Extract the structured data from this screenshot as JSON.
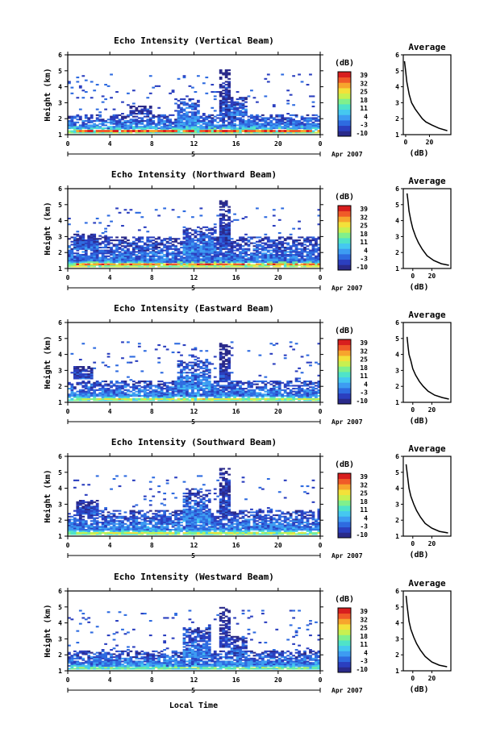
{
  "colors": {
    "scale": [
      "#2a2a8a",
      "#2b3fbf",
      "#2e6be0",
      "#3d9cf2",
      "#45c8f0",
      "#4fe3c9",
      "#80f08c",
      "#c8f050",
      "#f3e13a",
      "#f7a52d",
      "#f05a28",
      "#d81e1e"
    ],
    "line": "#000000",
    "background": "#ffffff"
  },
  "common": {
    "height_label": "Height (km)",
    "db_unit": "(dB)",
    "average_title": "Average",
    "db_label": "(dB)",
    "date_label": "Apr 2007",
    "day_label": "5",
    "xlabel": "Local Time",
    "colorbar_ticks": [
      "39",
      "32",
      "25",
      "18",
      "11",
      "4",
      "-3",
      "-10"
    ]
  },
  "chart_data": [
    {
      "type": "heatmap",
      "title": "Echo Intensity (Vertical Beam)",
      "ylabel": "Height (km)",
      "x_ticks": [
        "0",
        "4",
        "8",
        "12",
        "16",
        "20",
        "0"
      ],
      "y_ticks": [
        "1",
        "2",
        "3",
        "4",
        "5",
        "6"
      ],
      "xlim": [
        0,
        24
      ],
      "ylim": [
        1,
        6
      ],
      "colorbar": {
        "label": "(dB)",
        "ticks": [
          "39",
          "32",
          "25",
          "18",
          "11",
          "4",
          "-3",
          "-10"
        ],
        "range": [
          -10,
          39
        ]
      },
      "average_profile": {
        "title": "Average",
        "xlabel": "(dB)",
        "x_ticks": [
          "0",
          "20"
        ],
        "y_ticks": [
          "1",
          "2",
          "3",
          "4",
          "5",
          "6"
        ],
        "xlim": [
          -2,
          38
        ],
        "points": [
          [
            -1,
            5.6
          ],
          [
            0,
            5.0
          ],
          [
            1,
            4.3
          ],
          [
            3,
            3.5
          ],
          [
            5,
            3.0
          ],
          [
            8,
            2.6
          ],
          [
            11,
            2.3
          ],
          [
            14,
            2.0
          ],
          [
            17,
            1.8
          ],
          [
            22,
            1.6
          ],
          [
            28,
            1.4
          ],
          [
            35,
            1.25
          ]
        ]
      },
      "blobs": [
        {
          "x": [
            0,
            24
          ],
          "y": [
            1.1,
            1.5
          ],
          "v": 16
        },
        {
          "x": [
            0,
            24
          ],
          "y": [
            1.4,
            2.3
          ],
          "v": 3
        },
        {
          "x": [
            10.5,
            12.5
          ],
          "y": [
            1.6,
            3.3
          ],
          "v": 4
        },
        {
          "x": [
            14.5,
            15.5
          ],
          "y": [
            2.2,
            5.1
          ],
          "v": -3
        },
        {
          "x": [
            15.6,
            17
          ],
          "y": [
            2.2,
            3.4
          ],
          "v": 2
        },
        {
          "x": [
            6,
            8
          ],
          "y": [
            2.3,
            2.8
          ],
          "v": -4
        }
      ],
      "strong_band": {
        "y": [
          1.15,
          1.3
        ],
        "v": 38
      }
    },
    {
      "type": "heatmap",
      "title": "Echo Intensity (Northward Beam)",
      "ylabel": "Height (km)",
      "x_ticks": [
        "0",
        "4",
        "8",
        "12",
        "16",
        "20",
        "0"
      ],
      "y_ticks": [
        "1",
        "2",
        "3",
        "4",
        "5",
        "6"
      ],
      "xlim": [
        0,
        24
      ],
      "ylim": [
        1,
        6
      ],
      "colorbar": {
        "label": "(dB)",
        "ticks": [
          "39",
          "32",
          "25",
          "18",
          "11",
          "4",
          "-3",
          "-10"
        ],
        "range": [
          -10,
          39
        ]
      },
      "average_profile": {
        "title": "Average",
        "xlabel": "(dB)",
        "x_ticks": [
          "0",
          "20"
        ],
        "y_ticks": [
          "1",
          "2",
          "3",
          "4",
          "5",
          "6"
        ],
        "xlim": [
          -10,
          40
        ],
        "points": [
          [
            -6,
            5.7
          ],
          [
            -5,
            5.2
          ],
          [
            -4,
            4.6
          ],
          [
            -2,
            4.0
          ],
          [
            0,
            3.5
          ],
          [
            3,
            3.0
          ],
          [
            6,
            2.6
          ],
          [
            10,
            2.2
          ],
          [
            15,
            1.8
          ],
          [
            22,
            1.5
          ],
          [
            30,
            1.3
          ],
          [
            38,
            1.2
          ]
        ]
      },
      "blobs": [
        {
          "x": [
            0,
            24
          ],
          "y": [
            1.1,
            1.45
          ],
          "v": 20
        },
        {
          "x": [
            0,
            24
          ],
          "y": [
            1.4,
            3.0
          ],
          "v": 2
        },
        {
          "x": [
            11,
            14
          ],
          "y": [
            2.0,
            3.6
          ],
          "v": 3
        },
        {
          "x": [
            14.3,
            15.5
          ],
          "y": [
            2.5,
            5.3
          ],
          "v": -3
        },
        {
          "x": [
            0.5,
            3
          ],
          "y": [
            2.2,
            3.2
          ],
          "v": 0
        }
      ],
      "strong_band": {
        "y": [
          1.2,
          1.32
        ],
        "v": 36
      }
    },
    {
      "type": "heatmap",
      "title": "Echo Intensity (Eastward Beam)",
      "ylabel": "Height (km)",
      "x_ticks": [
        "0",
        "4",
        "8",
        "12",
        "16",
        "20",
        "0"
      ],
      "y_ticks": [
        "1",
        "2",
        "3",
        "4",
        "5",
        "6"
      ],
      "xlim": [
        0,
        24
      ],
      "ylim": [
        1,
        6
      ],
      "colorbar": {
        "label": "(dB)",
        "ticks": [
          "39",
          "32",
          "25",
          "18",
          "11",
          "4",
          "-3",
          "-10"
        ],
        "range": [
          -10,
          39
        ]
      },
      "average_profile": {
        "title": "Average",
        "xlabel": "(dB)",
        "x_ticks": [
          "0",
          "20"
        ],
        "y_ticks": [
          "1",
          "2",
          "3",
          "4",
          "5",
          "6"
        ],
        "xlim": [
          -10,
          40
        ],
        "points": [
          [
            -6,
            5.1
          ],
          [
            -5,
            4.5
          ],
          [
            -4,
            4.0
          ],
          [
            -2,
            3.6
          ],
          [
            0,
            3.1
          ],
          [
            3,
            2.7
          ],
          [
            7,
            2.3
          ],
          [
            11,
            2.0
          ],
          [
            16,
            1.7
          ],
          [
            23,
            1.45
          ],
          [
            31,
            1.3
          ],
          [
            38,
            1.2
          ]
        ]
      },
      "blobs": [
        {
          "x": [
            0,
            24
          ],
          "y": [
            1.1,
            1.4
          ],
          "v": 15
        },
        {
          "x": [
            0,
            24
          ],
          "y": [
            1.35,
            2.4
          ],
          "v": 3
        },
        {
          "x": [
            10.5,
            13.5
          ],
          "y": [
            1.8,
            3.6
          ],
          "v": 4
        },
        {
          "x": [
            14.3,
            15.5
          ],
          "y": [
            2.4,
            4.7
          ],
          "v": -3
        },
        {
          "x": [
            0.5,
            2.5
          ],
          "y": [
            2.5,
            3.3
          ],
          "v": -2
        }
      ],
      "strong_band": {
        "y": [
          1.15,
          1.25
        ],
        "v": 27
      }
    },
    {
      "type": "heatmap",
      "title": "Echo Intensity (Southward Beam)",
      "ylabel": "Height (km)",
      "x_ticks": [
        "0",
        "4",
        "8",
        "12",
        "16",
        "20",
        "0"
      ],
      "y_ticks": [
        "1",
        "2",
        "3",
        "4",
        "5",
        "6"
      ],
      "xlim": [
        0,
        24
      ],
      "ylim": [
        1,
        6
      ],
      "colorbar": {
        "label": "(dB)",
        "ticks": [
          "39",
          "32",
          "25",
          "18",
          "11",
          "4",
          "-3",
          "-10"
        ],
        "range": [
          -10,
          39
        ]
      },
      "average_profile": {
        "title": "Average",
        "xlabel": "(dB)",
        "x_ticks": [
          "0",
          "20"
        ],
        "y_ticks": [
          "1",
          "2",
          "3",
          "4",
          "5",
          "6"
        ],
        "xlim": [
          -10,
          40
        ],
        "points": [
          [
            -7,
            5.5
          ],
          [
            -6,
            5.0
          ],
          [
            -5,
            4.5
          ],
          [
            -4,
            4.0
          ],
          [
            -2,
            3.5
          ],
          [
            1,
            3.0
          ],
          [
            4,
            2.6
          ],
          [
            8,
            2.2
          ],
          [
            13,
            1.8
          ],
          [
            20,
            1.5
          ],
          [
            28,
            1.3
          ],
          [
            37,
            1.2
          ]
        ]
      },
      "blobs": [
        {
          "x": [
            0,
            24
          ],
          "y": [
            1.1,
            1.4
          ],
          "v": 16
        },
        {
          "x": [
            0,
            24
          ],
          "y": [
            1.35,
            2.6
          ],
          "v": 3
        },
        {
          "x": [
            11,
            13.5
          ],
          "y": [
            1.8,
            4.0
          ],
          "v": 3
        },
        {
          "x": [
            14.3,
            15.5
          ],
          "y": [
            2.5,
            5.4
          ],
          "v": -3
        },
        {
          "x": [
            0.8,
            3
          ],
          "y": [
            2.4,
            3.3
          ],
          "v": -1
        }
      ],
      "strong_band": {
        "y": [
          1.15,
          1.25
        ],
        "v": 27
      }
    },
    {
      "type": "heatmap",
      "title": "Echo Intensity (Westward Beam)",
      "ylabel": "Height (km)",
      "x_ticks": [
        "0",
        "4",
        "8",
        "12",
        "16",
        "20",
        "0"
      ],
      "y_ticks": [
        "1",
        "2",
        "3",
        "4",
        "5",
        "6"
      ],
      "xlim": [
        0,
        24
      ],
      "ylim": [
        1,
        6
      ],
      "colorbar": {
        "label": "(dB)",
        "ticks": [
          "39",
          "32",
          "25",
          "18",
          "11",
          "4",
          "-3",
          "-10"
        ],
        "range": [
          -10,
          39
        ]
      },
      "average_profile": {
        "title": "Average",
        "xlabel": "(dB)",
        "x_ticks": [
          "0",
          "20"
        ],
        "y_ticks": [
          "1",
          "2",
          "3",
          "4",
          "5",
          "6"
        ],
        "xlim": [
          -10,
          40
        ],
        "points": [
          [
            -7,
            5.7
          ],
          [
            -6,
            5.1
          ],
          [
            -5,
            4.6
          ],
          [
            -4,
            4.1
          ],
          [
            -2,
            3.6
          ],
          [
            1,
            3.1
          ],
          [
            4,
            2.7
          ],
          [
            8,
            2.3
          ],
          [
            13,
            1.9
          ],
          [
            20,
            1.55
          ],
          [
            28,
            1.35
          ],
          [
            36,
            1.25
          ]
        ]
      },
      "blobs": [
        {
          "x": [
            0,
            24
          ],
          "y": [
            1.1,
            1.35
          ],
          "v": 14
        },
        {
          "x": [
            0,
            24
          ],
          "y": [
            1.3,
            2.3
          ],
          "v": 3
        },
        {
          "x": [
            11,
            13.5
          ],
          "y": [
            1.8,
            3.7
          ],
          "v": 3
        },
        {
          "x": [
            14.3,
            15.5
          ],
          "y": [
            2.5,
            5.0
          ],
          "v": -3
        },
        {
          "x": [
            15.6,
            17
          ],
          "y": [
            2.0,
            3.2
          ],
          "v": 1
        }
      ],
      "strong_band": {
        "y": [
          1.15,
          1.22
        ],
        "v": 22
      }
    }
  ]
}
